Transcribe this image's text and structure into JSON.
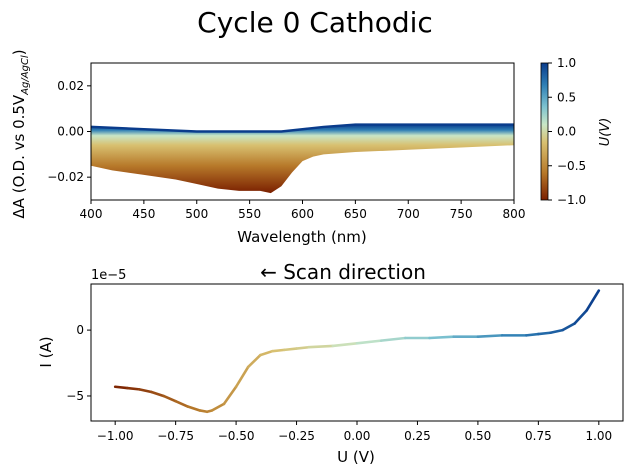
{
  "title": "Cycle 0 Cathodic",
  "chart_data": [
    {
      "type": "area",
      "xlabel": "Wavelength (nm)",
      "ylabel": "ΔA (O.D. vs 0.5V",
      "ylabel_sub": "Ag/AgCl",
      "ylabel_end": ")",
      "xlim": [
        400,
        800
      ],
      "ylim": [
        -0.03,
        0.03
      ],
      "xticks": [
        "400",
        "450",
        "500",
        "550",
        "600",
        "650",
        "700",
        "750",
        "800"
      ],
      "yticks": [
        "0.02",
        "0.00",
        "−0.02"
      ],
      "grid": false,
      "colorbar": {
        "label": "U(V)",
        "range": [
          -1.0,
          1.0
        ],
        "ticks": [
          "1.0",
          "0.5",
          "0.0",
          "−0.5",
          "−1.0"
        ],
        "colors": [
          "#7a1f00",
          "#b7792a",
          "#d8c070",
          "#c9e6c6",
          "#7ec3d0",
          "#2f7fb5",
          "#0a3c8c"
        ]
      },
      "upper_envelope": {
        "x": [
          400,
          450,
          500,
          550,
          580,
          600,
          620,
          650,
          700,
          750,
          800
        ],
        "y": [
          0.002,
          0.001,
          0.0,
          0.0,
          0.0,
          0.001,
          0.002,
          0.003,
          0.003,
          0.003,
          0.003
        ]
      },
      "lower_envelope": {
        "x": [
          400,
          420,
          450,
          480,
          500,
          520,
          540,
          560,
          570,
          580,
          590,
          600,
          610,
          620,
          650,
          700,
          750,
          800
        ],
        "y": [
          -0.015,
          -0.017,
          -0.019,
          -0.021,
          -0.023,
          -0.025,
          -0.026,
          -0.026,
          -0.027,
          -0.024,
          -0.018,
          -0.013,
          -0.011,
          -0.01,
          -0.009,
          -0.008,
          -0.007,
          -0.006
        ]
      }
    },
    {
      "type": "line",
      "annotation": "← Scan direction",
      "xlabel": "U (V)",
      "ylabel": "I (A)",
      "offset_label": "1e−5",
      "xlim": [
        -1.1,
        1.1
      ],
      "ylim": [
        -6.9,
        3.5
      ],
      "xticks": [
        "−1.00",
        "−0.75",
        "−0.50",
        "−0.25",
        "0.00",
        "0.25",
        "0.50",
        "0.75",
        "1.00"
      ],
      "yticks": [
        "0",
        "−5"
      ],
      "grid": false,
      "series": [
        {
          "x": [
            -1.0,
            -0.95,
            -0.9,
            -0.85,
            -0.8,
            -0.75,
            -0.7,
            -0.65,
            -0.62,
            -0.6,
            -0.55,
            -0.5,
            -0.45,
            -0.4,
            -0.35,
            -0.3,
            -0.25,
            -0.2,
            -0.1,
            0.0,
            0.1,
            0.2,
            0.3,
            0.4,
            0.5,
            0.6,
            0.7,
            0.75,
            0.8,
            0.85,
            0.9,
            0.95,
            1.0
          ],
          "y": [
            -4.3,
            -4.4,
            -4.5,
            -4.7,
            -5.0,
            -5.4,
            -5.8,
            -6.1,
            -6.2,
            -6.1,
            -5.6,
            -4.3,
            -2.8,
            -1.9,
            -1.6,
            -1.5,
            -1.4,
            -1.3,
            -1.2,
            -1.0,
            -0.8,
            -0.6,
            -0.6,
            -0.5,
            -0.5,
            -0.4,
            -0.4,
            -0.3,
            -0.2,
            0.0,
            0.5,
            1.5,
            3.0
          ]
        }
      ]
    }
  ]
}
